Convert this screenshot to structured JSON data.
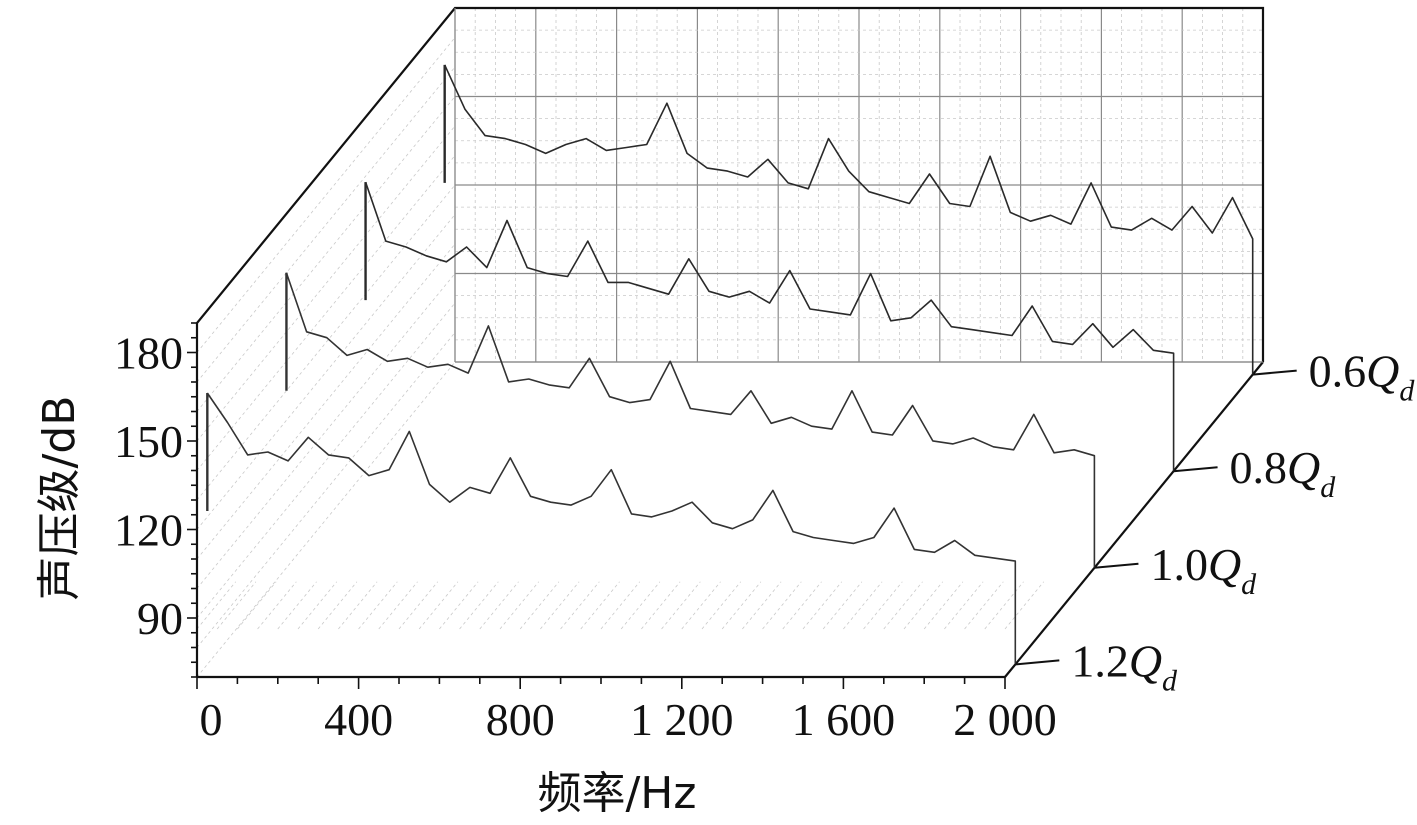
{
  "chart_data": {
    "type": "line",
    "view": "3d-waterfall",
    "title": "",
    "xlabel": "频率/Hz",
    "ylabel": "声压级/dB",
    "xlim": [
      0,
      2000
    ],
    "ylim": [
      70,
      190
    ],
    "x_ticks": [
      "0",
      "400",
      "800",
      "1 200",
      "1 600",
      "2 000"
    ],
    "x_tick_values": [
      0,
      400,
      800,
      1200,
      1600,
      2000
    ],
    "y_ticks": [
      "90",
      "120",
      "150",
      "180"
    ],
    "y_tick_values": [
      90,
      120,
      150,
      180
    ],
    "grid": true,
    "colors": {
      "trace_back": "#2a2a2a",
      "trace_front": "#333333",
      "axis": "#111111"
    },
    "series": [
      {
        "label_num": "0.6",
        "label_q": "Q",
        "label_sub": "d",
        "x": [
          0,
          50,
          100,
          150,
          200,
          250,
          300,
          350,
          400,
          450,
          500,
          550,
          600,
          650,
          700,
          750,
          800,
          850,
          900,
          950,
          1000,
          1050,
          1100,
          1150,
          1200,
          1250,
          1300,
          1350,
          1400,
          1450,
          1500,
          1550,
          1600,
          1650,
          1700,
          1750,
          1800,
          1850,
          1900,
          1950,
          2000
        ],
        "values": [
          175,
          160,
          151,
          150,
          148,
          145,
          148,
          150,
          146,
          147,
          148,
          162,
          145,
          140,
          139,
          137,
          143,
          135,
          133,
          150,
          139,
          132,
          130,
          128,
          138,
          128,
          127,
          144,
          125,
          122,
          124,
          121,
          135,
          120,
          119,
          123,
          119,
          127,
          118,
          130,
          116
        ]
      },
      {
        "label_num": "0.8",
        "label_q": "Q",
        "label_sub": "d",
        "x": [
          0,
          50,
          100,
          150,
          200,
          250,
          300,
          350,
          400,
          450,
          500,
          550,
          600,
          650,
          700,
          750,
          800,
          850,
          900,
          950,
          1000,
          1050,
          1100,
          1150,
          1200,
          1250,
          1300,
          1350,
          1400,
          1450,
          1500,
          1550,
          1600,
          1650,
          1700,
          1750,
          1800,
          1850,
          1900,
          1950,
          2000
        ],
        "values": [
          168,
          148,
          146,
          143,
          141,
          146,
          139,
          155,
          139,
          137,
          136,
          148,
          134,
          134,
          132,
          130,
          142,
          131,
          129,
          131,
          127,
          138,
          125,
          124,
          123,
          137,
          121,
          122,
          128,
          119,
          118,
          117,
          116,
          126,
          114,
          113,
          120,
          112,
          118,
          111,
          110
        ]
      },
      {
        "label_num": "1.0",
        "label_q": "Q",
        "label_sub": "d",
        "x": [
          0,
          50,
          100,
          150,
          200,
          250,
          300,
          350,
          400,
          450,
          500,
          550,
          600,
          650,
          700,
          750,
          800,
          850,
          900,
          950,
          1000,
          1050,
          1100,
          1150,
          1200,
          1250,
          1300,
          1350,
          1400,
          1450,
          1500,
          1550,
          1600,
          1650,
          1700,
          1750,
          1800,
          1850,
          1900,
          1950,
          2000
        ],
        "values": [
          170,
          150,
          148,
          142,
          144,
          140,
          141,
          138,
          139,
          136,
          152,
          133,
          134,
          132,
          131,
          141,
          128,
          126,
          127,
          140,
          124,
          123,
          122,
          130,
          119,
          121,
          118,
          117,
          130,
          116,
          115,
          125,
          113,
          112,
          114,
          111,
          110,
          122,
          109,
          110,
          108
        ]
      },
      {
        "label_num": "1.2",
        "label_q": "Q",
        "label_sub": "d",
        "x": [
          0,
          50,
          100,
          150,
          200,
          250,
          300,
          350,
          400,
          450,
          500,
          550,
          600,
          650,
          700,
          750,
          800,
          850,
          900,
          950,
          1000,
          1050,
          1100,
          1150,
          1200,
          1250,
          1300,
          1350,
          1400,
          1450,
          1500,
          1550,
          1600,
          1650,
          1700,
          1750,
          1800,
          1850,
          1900,
          1950,
          2000
        ],
        "values": [
          162,
          152,
          141,
          142,
          139,
          147,
          141,
          140,
          134,
          136,
          149,
          131,
          125,
          130,
          128,
          140,
          127,
          125,
          124,
          127,
          136,
          121,
          120,
          122,
          125,
          118,
          116,
          119,
          129,
          115,
          113,
          112,
          111,
          113,
          123,
          109,
          108,
          112,
          107,
          106,
          105
        ]
      }
    ]
  }
}
